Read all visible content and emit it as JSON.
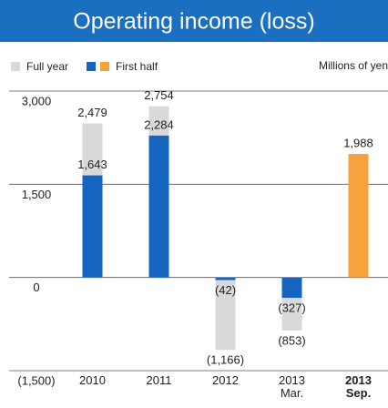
{
  "chart_data": {
    "type": "bar",
    "title": "Operating income (loss)",
    "unit_label": "Millions of yen",
    "categories": [
      [
        "2010"
      ],
      [
        "2011"
      ],
      [
        "2012"
      ],
      [
        "2013",
        "Mar."
      ],
      [
        "2013",
        "Sep."
      ]
    ],
    "series": [
      {
        "name": "Full year",
        "color": "#d9d9d9",
        "values": [
          2479,
          2754,
          -1166,
          -853,
          null
        ],
        "value_labels": [
          "2,479",
          "2,754",
          "(1,166)",
          "(853)",
          null
        ]
      },
      {
        "name": "First half",
        "color": "#1565c0",
        "colors": [
          "#1565c0",
          "#1565c0",
          "#1565c0",
          "#1565c0",
          "#f7a23c"
        ],
        "values": [
          1643,
          2284,
          -42,
          -327,
          1988
        ],
        "value_labels": [
          "1,643",
          "2,284",
          "(42)",
          "(327)",
          "1,988"
        ]
      }
    ],
    "ylim": [
      -1500,
      3000
    ],
    "yticks": [
      {
        "value": -1500,
        "label": "(1,500)"
      },
      0,
      {
        "value": 1500,
        "label": "1,500"
      },
      {
        "value": 3000,
        "label": "3,000"
      }
    ],
    "grid": true,
    "title_color": "#1a6fc0"
  }
}
